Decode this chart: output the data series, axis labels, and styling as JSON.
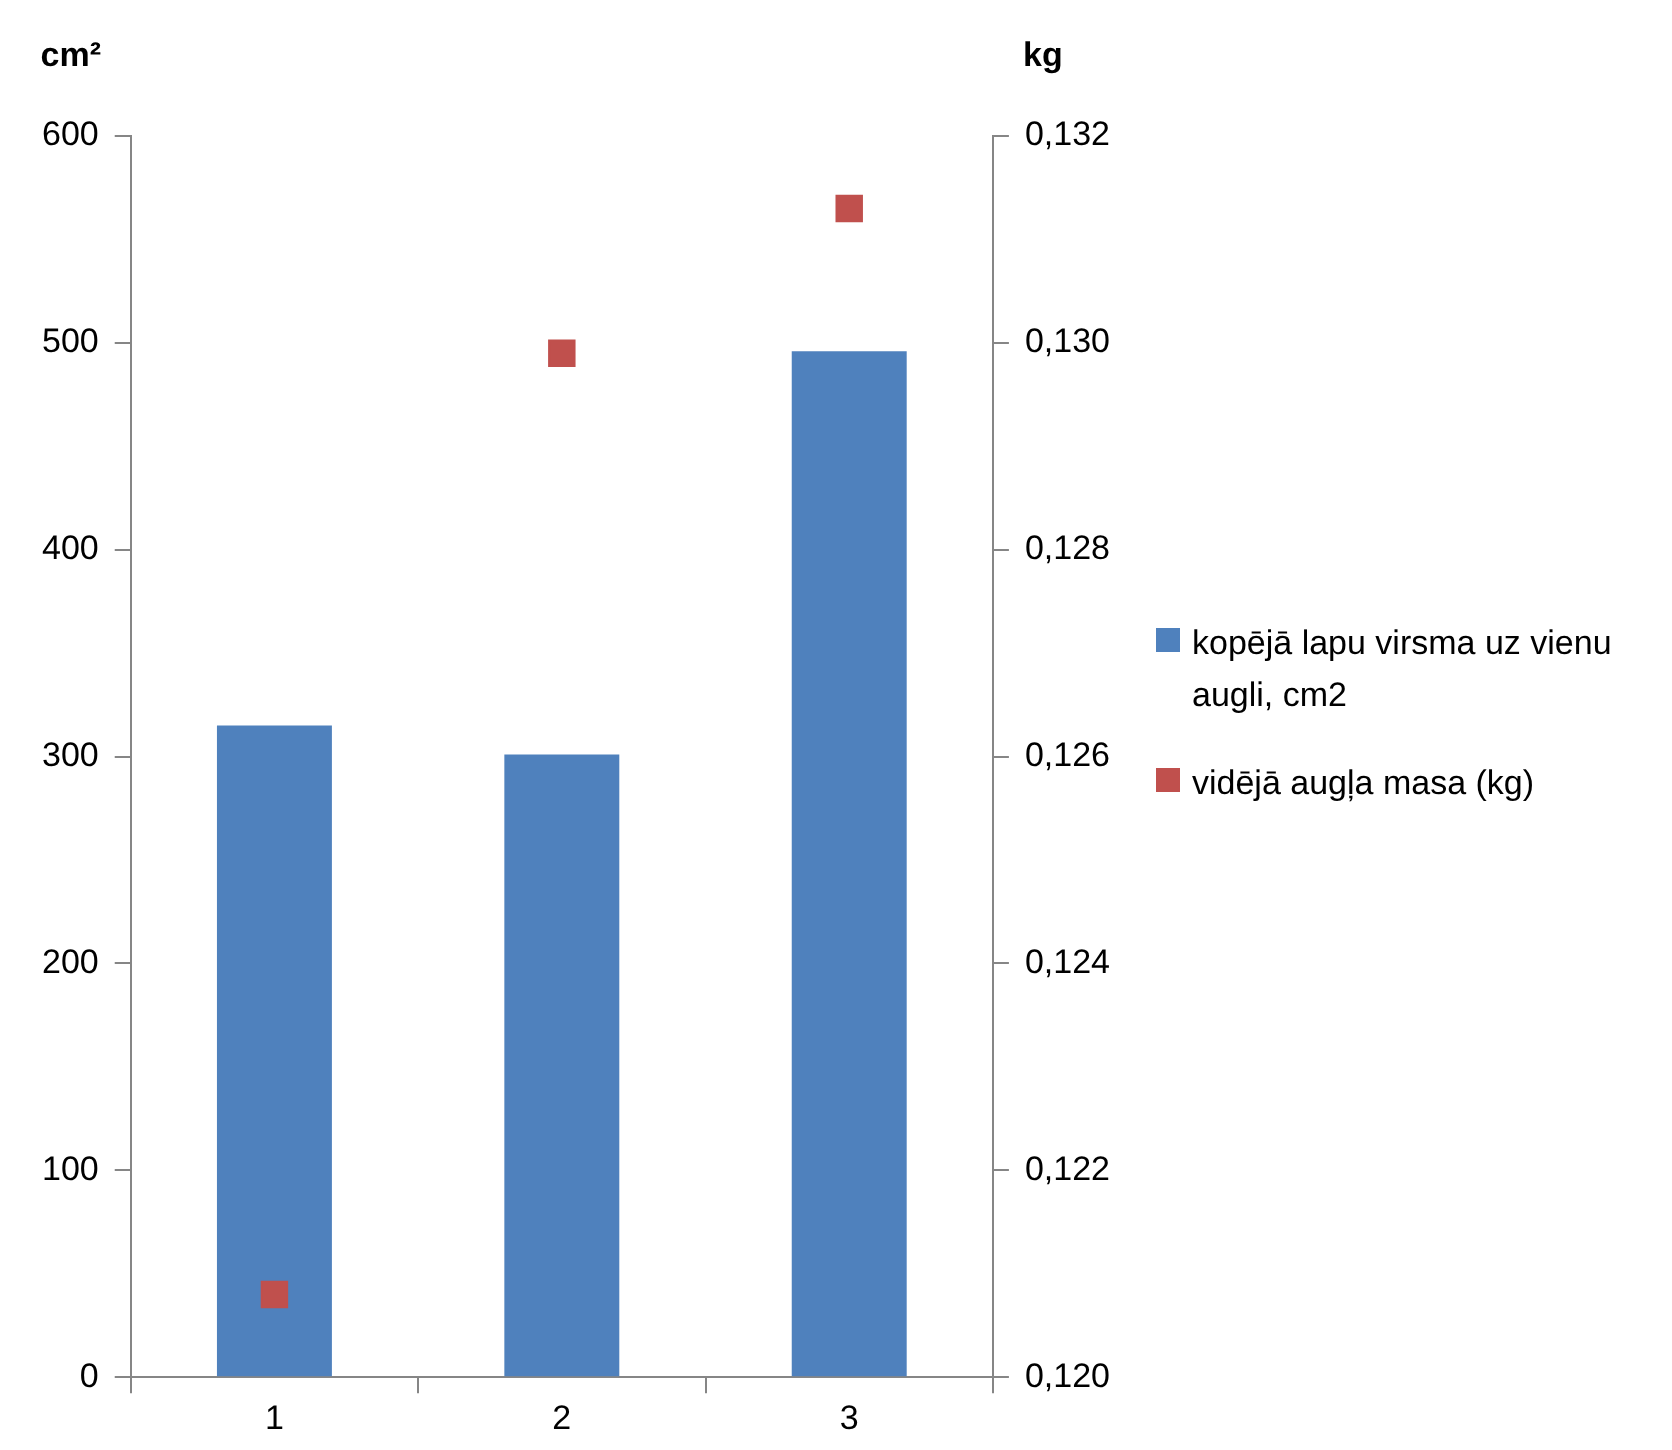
{
  "chart_data": {
    "type": "bar",
    "categories": [
      "1",
      "2",
      "3"
    ],
    "ylabel": "cm²",
    "y2label": "kg",
    "series": [
      {
        "name": "kopējā lapu virsma uz vienu augli, cm2",
        "color": "#4f81bd",
        "values": [
          315,
          301,
          496
        ]
      },
      {
        "name": "vidējā augļa masa (kg)",
        "type": "scatter",
        "axis": "y2",
        "marker": "square",
        "color": "#c0504d",
        "values": [
          0.1208,
          0.1299,
          0.1313
        ]
      }
    ],
    "ylim": [
      0,
      600
    ],
    "yticks": [
      0,
      100,
      200,
      300,
      400,
      500,
      600
    ],
    "y2lim": [
      0.12,
      0.132
    ],
    "y2ticks": [
      {
        "value": 0.12,
        "label": "0,120"
      },
      {
        "value": 0.122,
        "label": "0,122"
      },
      {
        "value": 0.124,
        "label": "0,124"
      },
      {
        "value": 0.126,
        "label": "0,126"
      },
      {
        "value": 0.128,
        "label": "0,128"
      },
      {
        "value": 0.13,
        "label": "0,130"
      },
      {
        "value": 0.132,
        "label": "0,132"
      }
    ],
    "grid": false,
    "legend": "right"
  }
}
